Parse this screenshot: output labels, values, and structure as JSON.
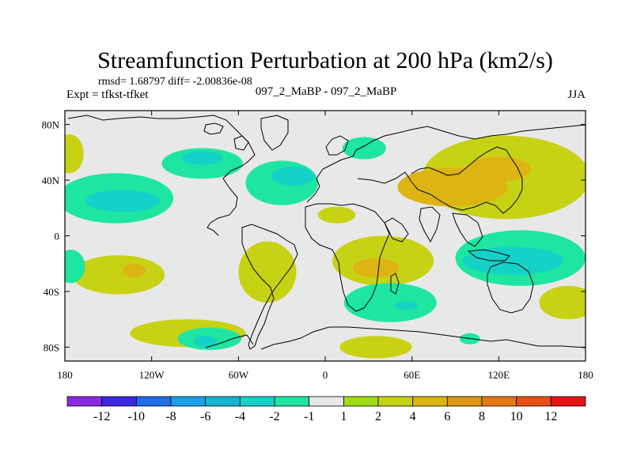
{
  "chart_data": {
    "type": "heatmap",
    "title": "Streamfunction Perturbation at 200 hPa (km2/s)",
    "subtitle_left": "rmsd= 1.68797 diff= -2.00836e-08",
    "experiment_label": "Expt = tfkst-tfket",
    "case_label": "097_2_MaBP - 097_2_MaBP",
    "season": "JJA",
    "xlabel": "",
    "ylabel": "",
    "x_ticks": [
      "180",
      "120W",
      "60W",
      "0",
      "60E",
      "120E",
      "180"
    ],
    "x_tick_values": [
      -180,
      -120,
      -60,
      0,
      60,
      120,
      180
    ],
    "y_ticks": [
      "80N",
      "40N",
      "0",
      "40S",
      "80S"
    ],
    "y_tick_values": [
      80,
      40,
      0,
      -40,
      -80
    ],
    "xlim": [
      -180,
      180
    ],
    "ylim": [
      -90,
      90
    ],
    "colorbar": {
      "labels": [
        "-12",
        "-10",
        "-8",
        "-6",
        "-4",
        "-2",
        "-1",
        "1",
        "2",
        "4",
        "6",
        "8",
        "10",
        "12"
      ],
      "colors": [
        "#8a2be2",
        "#3c28e0",
        "#1e6ee6",
        "#1aa0e6",
        "#14b4d2",
        "#14d2c8",
        "#1ee6a0",
        "#e8e8e8",
        "#a0dc14",
        "#c8d214",
        "#dcb414",
        "#dc9614",
        "#e67814",
        "#e65014",
        "#e61414"
      ]
    },
    "field_values": [
      {
        "name": "anom-01",
        "value": 2,
        "center": [
          -177,
          59
        ],
        "radius": [
          10,
          14
        ]
      },
      {
        "name": "anom-02",
        "value": -2,
        "center": [
          -145,
          27
        ],
        "radius": [
          40,
          18
        ]
      },
      {
        "name": "anom-03",
        "value": -4,
        "center": [
          -140,
          25
        ],
        "radius": [
          26,
          8
        ]
      },
      {
        "name": "anom-04",
        "value": -2,
        "center": [
          -85,
          52
        ],
        "radius": [
          28,
          11
        ]
      },
      {
        "name": "anom-05",
        "value": -4,
        "center": [
          -85,
          56
        ],
        "radius": [
          14,
          5
        ]
      },
      {
        "name": "anom-06",
        "value": -2,
        "center": [
          -30,
          38
        ],
        "radius": [
          25,
          16
        ]
      },
      {
        "name": "anom-07",
        "value": -4,
        "center": [
          -22,
          43
        ],
        "radius": [
          15,
          7
        ]
      },
      {
        "name": "anom-08",
        "value": -2,
        "center": [
          27,
          63
        ],
        "radius": [
          15,
          8
        ]
      },
      {
        "name": "anom-09",
        "value": 2,
        "center": [
          125,
          42
        ],
        "radius": [
          58,
          30
        ]
      },
      {
        "name": "anom-10",
        "value": 4,
        "center": [
          88,
          35
        ],
        "radius": [
          38,
          14
        ]
      },
      {
        "name": "anom-11",
        "value": 4,
        "center": [
          120,
          48
        ],
        "radius": [
          22,
          9
        ]
      },
      {
        "name": "anom-12",
        "value": 2,
        "center": [
          8,
          15
        ],
        "radius": [
          13,
          6
        ]
      },
      {
        "name": "anom-13",
        "value": 2,
        "center": [
          -143,
          -28
        ],
        "radius": [
          32,
          14
        ]
      },
      {
        "name": "anom-14",
        "value": 4,
        "center": [
          -132,
          -25
        ],
        "radius": [
          8,
          5
        ]
      },
      {
        "name": "anom-15",
        "value": -2,
        "center": [
          -176,
          -22
        ],
        "radius": [
          10,
          12
        ]
      },
      {
        "name": "anom-16",
        "value": 2,
        "center": [
          -40,
          -26
        ],
        "radius": [
          20,
          22
        ]
      },
      {
        "name": "anom-17",
        "value": 2,
        "center": [
          40,
          -18
        ],
        "radius": [
          35,
          18
        ]
      },
      {
        "name": "anom-18",
        "value": 4,
        "center": [
          35,
          -23
        ],
        "radius": [
          16,
          7
        ]
      },
      {
        "name": "anom-19",
        "value": -2,
        "center": [
          45,
          -48
        ],
        "radius": [
          32,
          14
        ]
      },
      {
        "name": "anom-20",
        "value": -4,
        "center": [
          56,
          -50
        ],
        "radius": [
          8,
          3
        ]
      },
      {
        "name": "anom-21",
        "value": -2,
        "center": [
          135,
          -16
        ],
        "radius": [
          45,
          20
        ]
      },
      {
        "name": "anom-22",
        "value": -4,
        "center": [
          130,
          -18
        ],
        "radius": [
          35,
          10
        ]
      },
      {
        "name": "anom-23",
        "value": 2,
        "center": [
          168,
          -48
        ],
        "radius": [
          20,
          12
        ]
      },
      {
        "name": "anom-24",
        "value": 2,
        "center": [
          -95,
          -70
        ],
        "radius": [
          40,
          10
        ]
      },
      {
        "name": "anom-25",
        "value": -2,
        "center": [
          -80,
          -74
        ],
        "radius": [
          22,
          8
        ]
      },
      {
        "name": "anom-26",
        "value": -4,
        "center": [
          -83,
          -76
        ],
        "radius": [
          8,
          4
        ]
      },
      {
        "name": "anom-27",
        "value": 2,
        "center": [
          35,
          -80
        ],
        "radius": [
          25,
          8
        ]
      },
      {
        "name": "anom-28",
        "value": -2,
        "center": [
          100,
          -74
        ],
        "radius": [
          7,
          4
        ]
      }
    ]
  }
}
